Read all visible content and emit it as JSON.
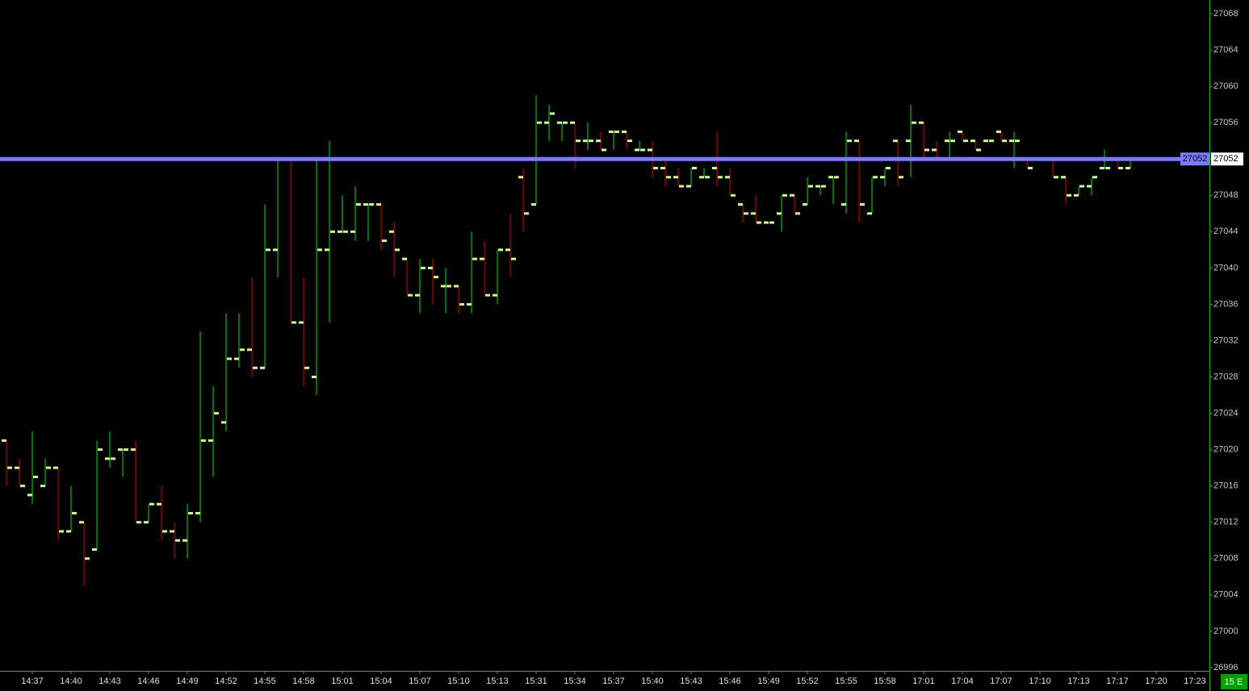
{
  "chart_data": {
    "type": "ohlc",
    "categories": [
      null,
      null,
      "14:37",
      null,
      null,
      "14:40",
      null,
      null,
      "14:43",
      null,
      null,
      "14:46",
      null,
      null,
      "14:49",
      null,
      null,
      "14:52",
      null,
      null,
      "14:55",
      null,
      null,
      "14:58",
      null,
      null,
      "15:01",
      null,
      null,
      "15:04",
      null,
      null,
      "15:07",
      null,
      null,
      "15:10",
      null,
      null,
      "15:13",
      null,
      null,
      "15:31",
      null,
      null,
      "15:34",
      null,
      null,
      "15:37",
      null,
      null,
      "15:40",
      null,
      null,
      "15:43",
      null,
      null,
      "15:46",
      null,
      null,
      "15:49",
      null,
      null,
      "15:52",
      null,
      null,
      "15:55",
      null,
      null,
      "15:58",
      null,
      null,
      "17:01",
      null,
      null,
      "17:04",
      null,
      null,
      "17:07",
      null,
      null,
      "17:10",
      null,
      null,
      "17:13",
      null,
      null,
      "17:17",
      null,
      null,
      "17:20",
      null,
      null,
      "17:23"
    ],
    "open": [
      27021,
      27018,
      27015,
      27016,
      27018,
      27011,
      27012,
      27009,
      27019,
      27020,
      27020,
      27012,
      27014,
      27011,
      27010,
      27013,
      27021,
      27023,
      27030,
      27031,
      27029,
      27042,
      27052,
      27034,
      27028,
      27042,
      27044,
      27044,
      27047,
      27047,
      27044,
      27041,
      27037,
      27040,
      27038,
      27038,
      27036,
      27041,
      27037,
      27042,
      27050,
      27047,
      27056,
      27056,
      27056,
      27054,
      27054,
      27055,
      27055,
      27053,
      27053,
      27051,
      27050,
      27049,
      27050,
      27051,
      27050,
      27047,
      27046,
      27045,
      27046,
      27048,
      27047,
      27049,
      27050,
      27047,
      27054,
      27046,
      27050,
      27054,
      27054,
      27056,
      27053,
      27054,
      27055,
      27054,
      27054,
      27055,
      27054,
      27052,
      null,
      27052,
      27050,
      27048,
      27049,
      27051,
      27052,
      27051,
      null,
      null,
      null,
      null,
      null
    ],
    "high": [
      27021,
      27019,
      27022,
      27019,
      27018,
      27016,
      27012,
      27021,
      27022,
      27020,
      27021,
      27014,
      27016,
      27012,
      27014,
      27033,
      27027,
      27035,
      27035,
      27039,
      27047,
      27052,
      27052,
      27039,
      27052,
      27054,
      27048,
      27049,
      27047,
      27047,
      27045,
      27041,
      27041,
      27041,
      27040,
      27038,
      27044,
      27043,
      27042,
      27046,
      27051,
      27059,
      27058,
      27056,
      27056,
      27056,
      27055,
      27055,
      27055,
      27054,
      27054,
      27052,
      27051,
      27051,
      27051,
      27055,
      27051,
      27047,
      27048,
      27045,
      27048,
      27048,
      27050,
      27049,
      27050,
      27055,
      27054,
      27050,
      27051,
      27054,
      27058,
      27056,
      27054,
      27055,
      27055,
      27054,
      27054,
      27055,
      27055,
      27052,
      null,
      27052,
      27050,
      27049,
      27050,
      27053,
      27052,
      27052,
      null,
      null,
      null,
      null,
      null
    ],
    "low": [
      27016,
      27016,
      27014,
      27016,
      27010,
      27011,
      27005,
      27009,
      27018,
      27017,
      27012,
      27012,
      27010,
      27008,
      27008,
      27012,
      27017,
      27022,
      27029,
      27028,
      27029,
      27039,
      27034,
      27027,
      27026,
      27034,
      27044,
      27043,
      27043,
      27042,
      27039,
      27037,
      27035,
      27036,
      27035,
      27035,
      27035,
      27037,
      27036,
      27039,
      27044,
      27047,
      27054,
      27054,
      27051,
      27053,
      27053,
      27053,
      27053,
      27053,
      27050,
      27049,
      27049,
      27049,
      27050,
      27049,
      27048,
      27045,
      27045,
      27045,
      27044,
      27046,
      27047,
      27048,
      27047,
      27046,
      27045,
      27046,
      27049,
      27049,
      27050,
      27052,
      27052,
      27052,
      27054,
      27053,
      27054,
      27054,
      27051,
      27051,
      null,
      27050,
      27047,
      27048,
      27048,
      27051,
      27051,
      27051,
      null,
      null,
      null,
      null,
      null
    ],
    "close": [
      27018,
      27016,
      27017,
      27018,
      27011,
      27013,
      27008,
      27020,
      27019,
      27020,
      27012,
      27014,
      27011,
      27010,
      27013,
      27021,
      27024,
      27030,
      27031,
      27029,
      27042,
      27052,
      27034,
      27029,
      27042,
      27044,
      27044,
      27047,
      27047,
      27043,
      27042,
      27037,
      27040,
      27039,
      27038,
      27036,
      27041,
      27037,
      27042,
      27041,
      27046,
      27056,
      27057,
      27056,
      27054,
      27054,
      27053,
      27055,
      27054,
      27053,
      27051,
      27050,
      27049,
      27051,
      27050,
      27050,
      27048,
      27046,
      27045,
      27045,
      27048,
      27046,
      27049,
      27049,
      27050,
      27054,
      27047,
      27050,
      27051,
      27050,
      27056,
      27053,
      27052,
      27054,
      27054,
      27053,
      27054,
      27054,
      27054,
      27051,
      null,
      27050,
      27048,
      27049,
      27050,
      27051,
      27051,
      27052,
      null,
      null,
      null,
      null,
      null
    ],
    "up_color": "#00e000",
    "down_color": "#e00000",
    "tick_color": "#ccff99",
    "ylim": [
      26995.64,
      27069.51
    ],
    "yticks": [
      26996,
      27000,
      27004,
      27008,
      27012,
      27016,
      27020,
      27024,
      27028,
      27032,
      27036,
      27040,
      27044,
      27048,
      27052,
      27056,
      27060,
      27064,
      27068
    ],
    "last_price": 27052,
    "last_price_color": "#7b7bff",
    "interval_label": "15 E"
  }
}
